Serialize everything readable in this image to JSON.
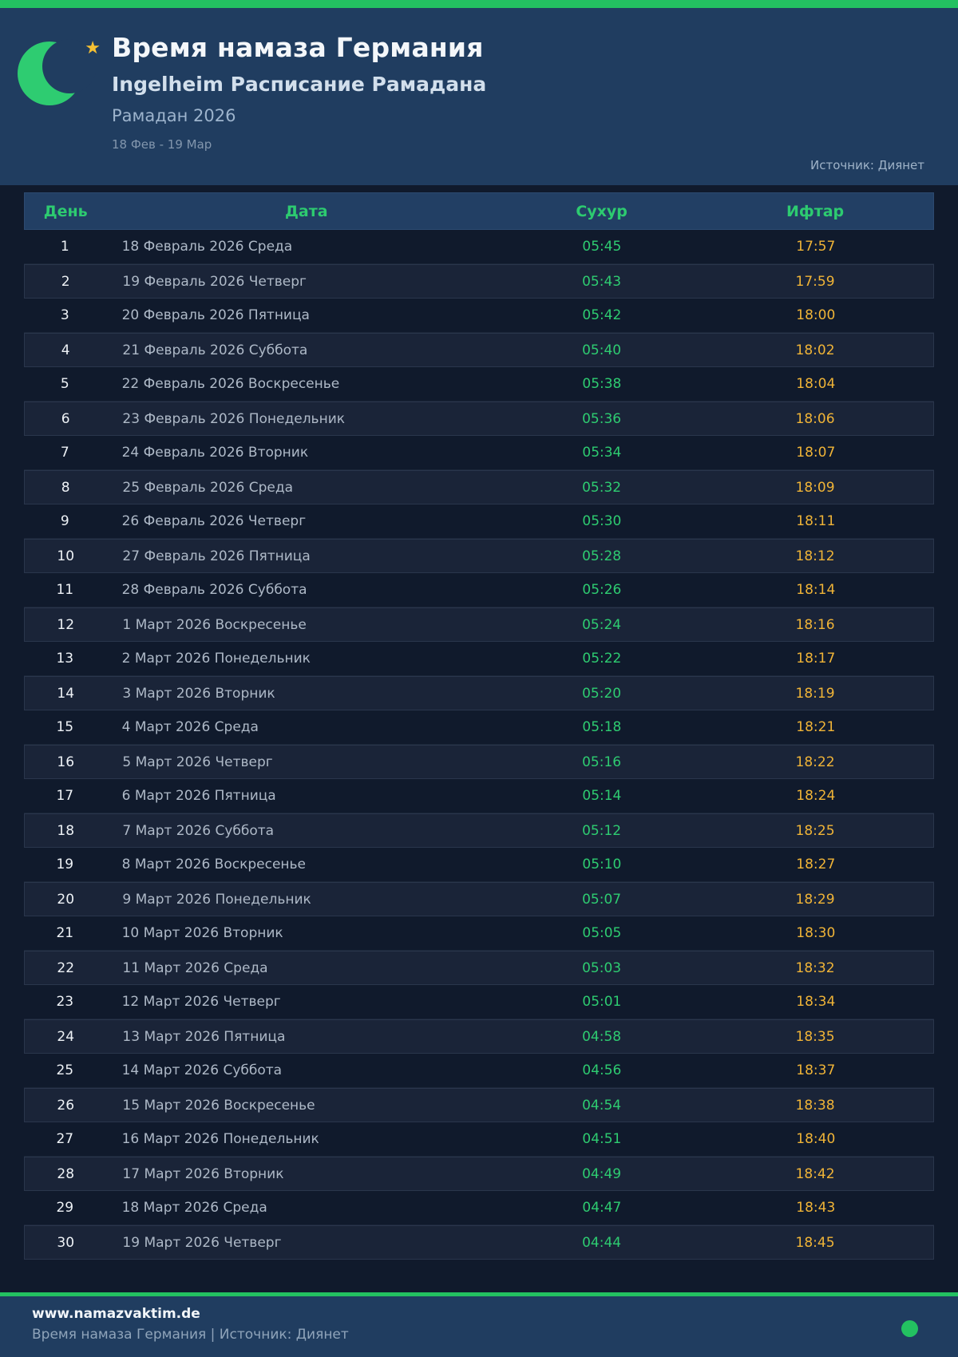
{
  "page": {
    "accent_green": "#23c161",
    "accent_yellow": "#f0b437",
    "header_bg": "#203d60",
    "body_bg": "#101a2c"
  },
  "header": {
    "title": "Время намаза Германия",
    "subtitle": "Ingelheim Расписание Рамадана",
    "season": "Рамадан 2026",
    "date_range": "18 Фев - 19 Мар",
    "source": "Источник: Диянет",
    "star_glyph": "★"
  },
  "table": {
    "columns": [
      "День",
      "Дата",
      "Сухур",
      "Ифтар"
    ],
    "rows": [
      {
        "day": "1",
        "date": "18 Февраль 2026 Среда",
        "suhur": "05:45",
        "iftar": "17:57"
      },
      {
        "day": "2",
        "date": "19 Февраль 2026 Четверг",
        "suhur": "05:43",
        "iftar": "17:59"
      },
      {
        "day": "3",
        "date": "20 Февраль 2026 Пятница",
        "suhur": "05:42",
        "iftar": "18:00"
      },
      {
        "day": "4",
        "date": "21 Февраль 2026 Суббота",
        "suhur": "05:40",
        "iftar": "18:02"
      },
      {
        "day": "5",
        "date": "22 Февраль 2026 Воскресенье",
        "suhur": "05:38",
        "iftar": "18:04"
      },
      {
        "day": "6",
        "date": "23 Февраль 2026 Понедельник",
        "suhur": "05:36",
        "iftar": "18:06"
      },
      {
        "day": "7",
        "date": "24 Февраль 2026 Вторник",
        "suhur": "05:34",
        "iftar": "18:07"
      },
      {
        "day": "8",
        "date": "25 Февраль 2026 Среда",
        "suhur": "05:32",
        "iftar": "18:09"
      },
      {
        "day": "9",
        "date": "26 Февраль 2026 Четверг",
        "suhur": "05:30",
        "iftar": "18:11"
      },
      {
        "day": "10",
        "date": "27 Февраль 2026 Пятница",
        "suhur": "05:28",
        "iftar": "18:12"
      },
      {
        "day": "11",
        "date": "28 Февраль 2026 Суббота",
        "suhur": "05:26",
        "iftar": "18:14"
      },
      {
        "day": "12",
        "date": "1 Март 2026 Воскресенье",
        "suhur": "05:24",
        "iftar": "18:16"
      },
      {
        "day": "13",
        "date": "2 Март 2026 Понедельник",
        "suhur": "05:22",
        "iftar": "18:17"
      },
      {
        "day": "14",
        "date": "3 Март 2026 Вторник",
        "suhur": "05:20",
        "iftar": "18:19"
      },
      {
        "day": "15",
        "date": "4 Март 2026 Среда",
        "suhur": "05:18",
        "iftar": "18:21"
      },
      {
        "day": "16",
        "date": "5 Март 2026 Четверг",
        "suhur": "05:16",
        "iftar": "18:22"
      },
      {
        "day": "17",
        "date": "6 Март 2026 Пятница",
        "suhur": "05:14",
        "iftar": "18:24"
      },
      {
        "day": "18",
        "date": "7 Март 2026 Суббота",
        "suhur": "05:12",
        "iftar": "18:25"
      },
      {
        "day": "19",
        "date": "8 Март 2026 Воскресенье",
        "suhur": "05:10",
        "iftar": "18:27"
      },
      {
        "day": "20",
        "date": "9 Март 2026 Понедельник",
        "suhur": "05:07",
        "iftar": "18:29"
      },
      {
        "day": "21",
        "date": "10 Март 2026 Вторник",
        "suhur": "05:05",
        "iftar": "18:30"
      },
      {
        "day": "22",
        "date": "11 Март 2026 Среда",
        "suhur": "05:03",
        "iftar": "18:32"
      },
      {
        "day": "23",
        "date": "12 Март 2026 Четверг",
        "suhur": "05:01",
        "iftar": "18:34"
      },
      {
        "day": "24",
        "date": "13 Март 2026 Пятница",
        "suhur": "04:58",
        "iftar": "18:35"
      },
      {
        "day": "25",
        "date": "14 Март 2026 Суббота",
        "suhur": "04:56",
        "iftar": "18:37"
      },
      {
        "day": "26",
        "date": "15 Март 2026 Воскресенье",
        "suhur": "04:54",
        "iftar": "18:38"
      },
      {
        "day": "27",
        "date": "16 Март 2026 Понедельник",
        "suhur": "04:51",
        "iftar": "18:40"
      },
      {
        "day": "28",
        "date": "17 Март 2026 Вторник",
        "suhur": "04:49",
        "iftar": "18:42"
      },
      {
        "day": "29",
        "date": "18 Март 2026 Среда",
        "suhur": "04:47",
        "iftar": "18:43"
      },
      {
        "day": "30",
        "date": "19 Март 2026 Четверг",
        "suhur": "04:44",
        "iftar": "18:45"
      }
    ]
  },
  "footer": {
    "website": "www.namazvaktim.de",
    "tagline": "Время намаза Германия | Источник: Диянет"
  }
}
